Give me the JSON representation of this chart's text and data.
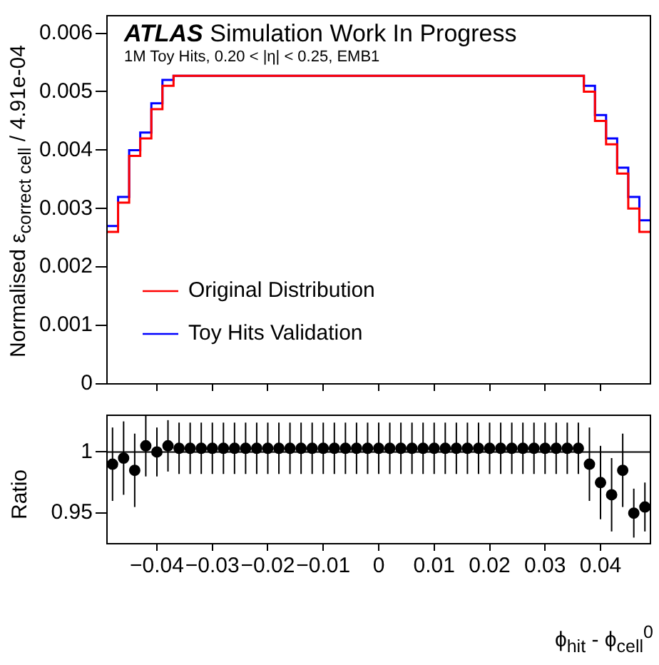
{
  "chart_data": [
    {
      "type": "histogram",
      "title": "ATLAS Simulation Work In Progress",
      "subtitle": "1M Toy Hits, 0.20 < |η| < 0.25, EMB1",
      "ylabel": "Normalised ε$_{correct cell}$ / 4.91e-04",
      "bins": [
        -0.049,
        -0.047,
        -0.045,
        -0.043,
        -0.041,
        -0.039,
        -0.037,
        -0.035,
        -0.033,
        -0.031,
        -0.029,
        -0.027,
        -0.025,
        -0.023,
        -0.021,
        -0.019,
        -0.017,
        -0.015,
        -0.013,
        -0.011,
        -0.009,
        -0.007,
        -0.005,
        -0.003,
        -0.001,
        0.001,
        0.003,
        0.005,
        0.007,
        0.009,
        0.011,
        0.013,
        0.015,
        0.017,
        0.019,
        0.021,
        0.023,
        0.025,
        0.027,
        0.029,
        0.031,
        0.033,
        0.035,
        0.037,
        0.039,
        0.041,
        0.043,
        0.045,
        0.047,
        0.049
      ],
      "series": [
        {
          "name": "Original Distribution",
          "color": "#ff0000",
          "values": [
            0.0026,
            0.0031,
            0.0039,
            0.0042,
            0.0047,
            0.0051,
            0.00527,
            0.00527,
            0.00527,
            0.00527,
            0.00527,
            0.00527,
            0.00527,
            0.00527,
            0.00527,
            0.00527,
            0.00527,
            0.00527,
            0.00527,
            0.00527,
            0.00527,
            0.00527,
            0.00527,
            0.00527,
            0.00527,
            0.00527,
            0.00527,
            0.00527,
            0.00527,
            0.00527,
            0.00527,
            0.00527,
            0.00527,
            0.00527,
            0.00527,
            0.00527,
            0.00527,
            0.00527,
            0.00527,
            0.00527,
            0.00527,
            0.00527,
            0.00527,
            0.005,
            0.0045,
            0.0041,
            0.0036,
            0.003,
            0.0026
          ]
        },
        {
          "name": "Toy Hits Validation",
          "color": "#0000ff",
          "values": [
            0.0027,
            0.0032,
            0.004,
            0.0043,
            0.0048,
            0.0052,
            0.00527,
            0.00527,
            0.00527,
            0.00527,
            0.00527,
            0.00527,
            0.00527,
            0.00527,
            0.00527,
            0.00527,
            0.00527,
            0.00527,
            0.00527,
            0.00527,
            0.00527,
            0.00527,
            0.00527,
            0.00527,
            0.00527,
            0.00527,
            0.00527,
            0.00527,
            0.00527,
            0.00527,
            0.00527,
            0.00527,
            0.00527,
            0.00527,
            0.00527,
            0.00527,
            0.00527,
            0.00527,
            0.00527,
            0.00527,
            0.00527,
            0.00527,
            0.00527,
            0.0051,
            0.0046,
            0.0042,
            0.0037,
            0.0032,
            0.0028
          ]
        }
      ],
      "xlim": [
        -0.049,
        0.049
      ],
      "xticks": [
        {
          "value": -0.04,
          "label": null
        },
        {
          "value": -0.03,
          "label": null
        },
        {
          "value": -0.02,
          "label": null
        },
        {
          "value": -0.01,
          "label": null
        },
        {
          "value": 0,
          "label": null
        },
        {
          "value": 0.01,
          "label": null
        },
        {
          "value": 0.02,
          "label": null
        },
        {
          "value": 0.03,
          "label": null
        },
        {
          "value": 0.04,
          "label": null
        }
      ],
      "ylim": [
        0,
        0.0063
      ],
      "yticks": [
        0,
        0.001,
        0.002,
        0.003,
        0.004,
        0.005,
        0.006
      ],
      "tick_labels": "y",
      "legend": "bottom left"
    },
    {
      "type": "scatter",
      "xlabel": "ϕ$_{hit}$ - ϕ$_{cell}$$^{0}$",
      "ylabel": "Ratio",
      "color": "#000000",
      "marker": "circle",
      "x": [
        -0.048,
        -0.046,
        -0.044,
        -0.042,
        -0.04,
        -0.038,
        -0.036,
        -0.034,
        -0.032,
        -0.03,
        -0.028,
        -0.026,
        -0.024,
        -0.022,
        -0.02,
        -0.018,
        -0.016,
        -0.014,
        -0.012,
        -0.01,
        -0.008,
        -0.006,
        -0.004,
        -0.002,
        0,
        0.002,
        0.004,
        0.006,
        0.008,
        0.01,
        0.012,
        0.014,
        0.016,
        0.018,
        0.02,
        0.022,
        0.024,
        0.026,
        0.028,
        0.03,
        0.032,
        0.034,
        0.036,
        0.038,
        0.04,
        0.042,
        0.044,
        0.046,
        0.048
      ],
      "values": [
        0.99,
        0.995,
        0.985,
        1.005,
        1,
        1.005,
        1.003,
        1.003,
        1.003,
        1.003,
        1.003,
        1.003,
        1.003,
        1.003,
        1.003,
        1.003,
        1.003,
        1.003,
        1.003,
        1.003,
        1.003,
        1.003,
        1.003,
        1.003,
        1.003,
        1.003,
        1.003,
        1.003,
        1.003,
        1.003,
        1.003,
        1.003,
        1.003,
        1.003,
        1.003,
        1.003,
        1.003,
        1.003,
        1.003,
        1.003,
        1.003,
        1.003,
        1.003,
        0.99,
        0.975,
        0.965,
        0.985,
        0.95,
        0.955
      ],
      "errors": [
        0.03,
        0.03,
        0.03,
        0.025,
        0.02,
        0.021,
        0.021,
        0.021,
        0.021,
        0.021,
        0.021,
        0.021,
        0.021,
        0.021,
        0.021,
        0.021,
        0.021,
        0.021,
        0.021,
        0.021,
        0.021,
        0.021,
        0.021,
        0.021,
        0.021,
        0.021,
        0.021,
        0.021,
        0.021,
        0.021,
        0.021,
        0.021,
        0.021,
        0.021,
        0.021,
        0.021,
        0.021,
        0.021,
        0.021,
        0.021,
        0.021,
        0.021,
        0.021,
        0.03,
        0.03,
        0.03,
        0.03,
        0.02,
        0.02
      ],
      "xlim": [
        -0.049,
        0.049
      ],
      "xticks": [
        {
          "value": -0.04,
          "label": "−0.04"
        },
        {
          "value": -0.03,
          "label": "−0.03"
        },
        {
          "value": -0.02,
          "label": "−0.02"
        },
        {
          "value": -0.01,
          "label": "−0.01"
        },
        0,
        0.01,
        0.02,
        0.03,
        0.04
      ],
      "ylim": [
        0.925,
        1.03
      ],
      "yticks": [
        0.95,
        1
      ],
      "ref_lines": [
        {
          "axis": "y",
          "value": 1,
          "color": "#000000"
        }
      ]
    }
  ]
}
